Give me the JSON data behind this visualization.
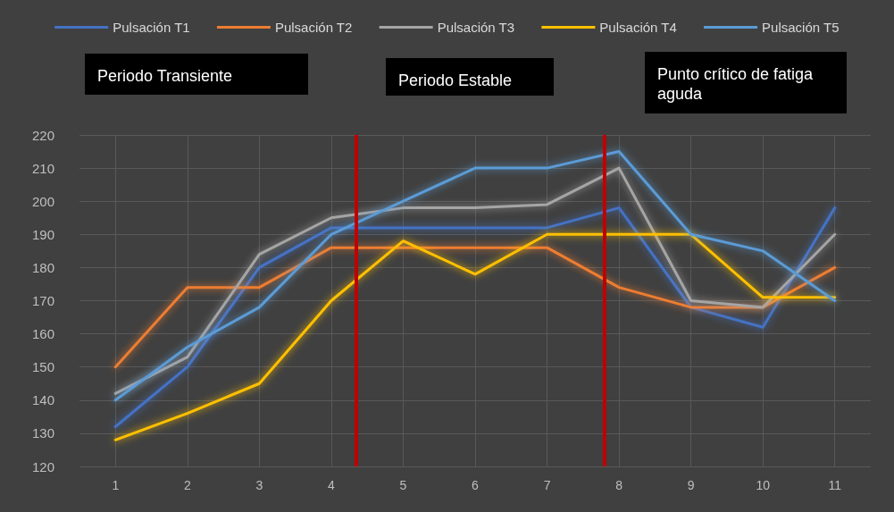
{
  "chart_data": {
    "type": "line",
    "x": [
      1,
      2,
      3,
      4,
      5,
      6,
      7,
      8,
      9,
      10,
      11
    ],
    "xlim": [
      0.5,
      11.5
    ],
    "xticks": [
      1,
      2,
      3,
      4,
      5,
      6,
      7,
      8,
      9,
      10,
      11
    ],
    "ylim": [
      120,
      220
    ],
    "yticks": [
      120,
      130,
      140,
      150,
      160,
      170,
      180,
      190,
      200,
      210,
      220
    ],
    "grid": true,
    "legend": "top",
    "marker": "none",
    "line_style": "solid",
    "series": [
      {
        "name": "Pulsación T1",
        "color": "#4472c4",
        "values": [
          132,
          150,
          180,
          192,
          192,
          192,
          192,
          198,
          168,
          162,
          198
        ]
      },
      {
        "name": "Pulsación T2",
        "color": "#ed7d31",
        "values": [
          150,
          174,
          174,
          186,
          186,
          186,
          186,
          174,
          168,
          168,
          180
        ]
      },
      {
        "name": "Pulsación T3",
        "color": "#a5a5a5",
        "values": [
          142,
          153,
          184,
          195,
          198,
          198,
          199,
          210,
          170,
          168,
          190
        ]
      },
      {
        "name": "Pulsación T4",
        "color": "#ffc000",
        "values": [
          128,
          136,
          145,
          170,
          188,
          178,
          190,
          190,
          190,
          171,
          171
        ]
      },
      {
        "name": "Pulsación T5",
        "color": "#5b9bd5",
        "values": [
          140,
          156,
          168,
          190,
          200,
          210,
          210,
          215,
          190,
          185,
          170
        ]
      }
    ],
    "ref_lines": [
      {
        "axis": "x",
        "value": 4.35,
        "color": "#c00000"
      },
      {
        "axis": "x",
        "value": 7.8,
        "color": "#c00000"
      }
    ],
    "annotations": [
      "Periodo Transiente",
      "Periodo Estable",
      "Punto crítico de fatiga aguda"
    ]
  }
}
